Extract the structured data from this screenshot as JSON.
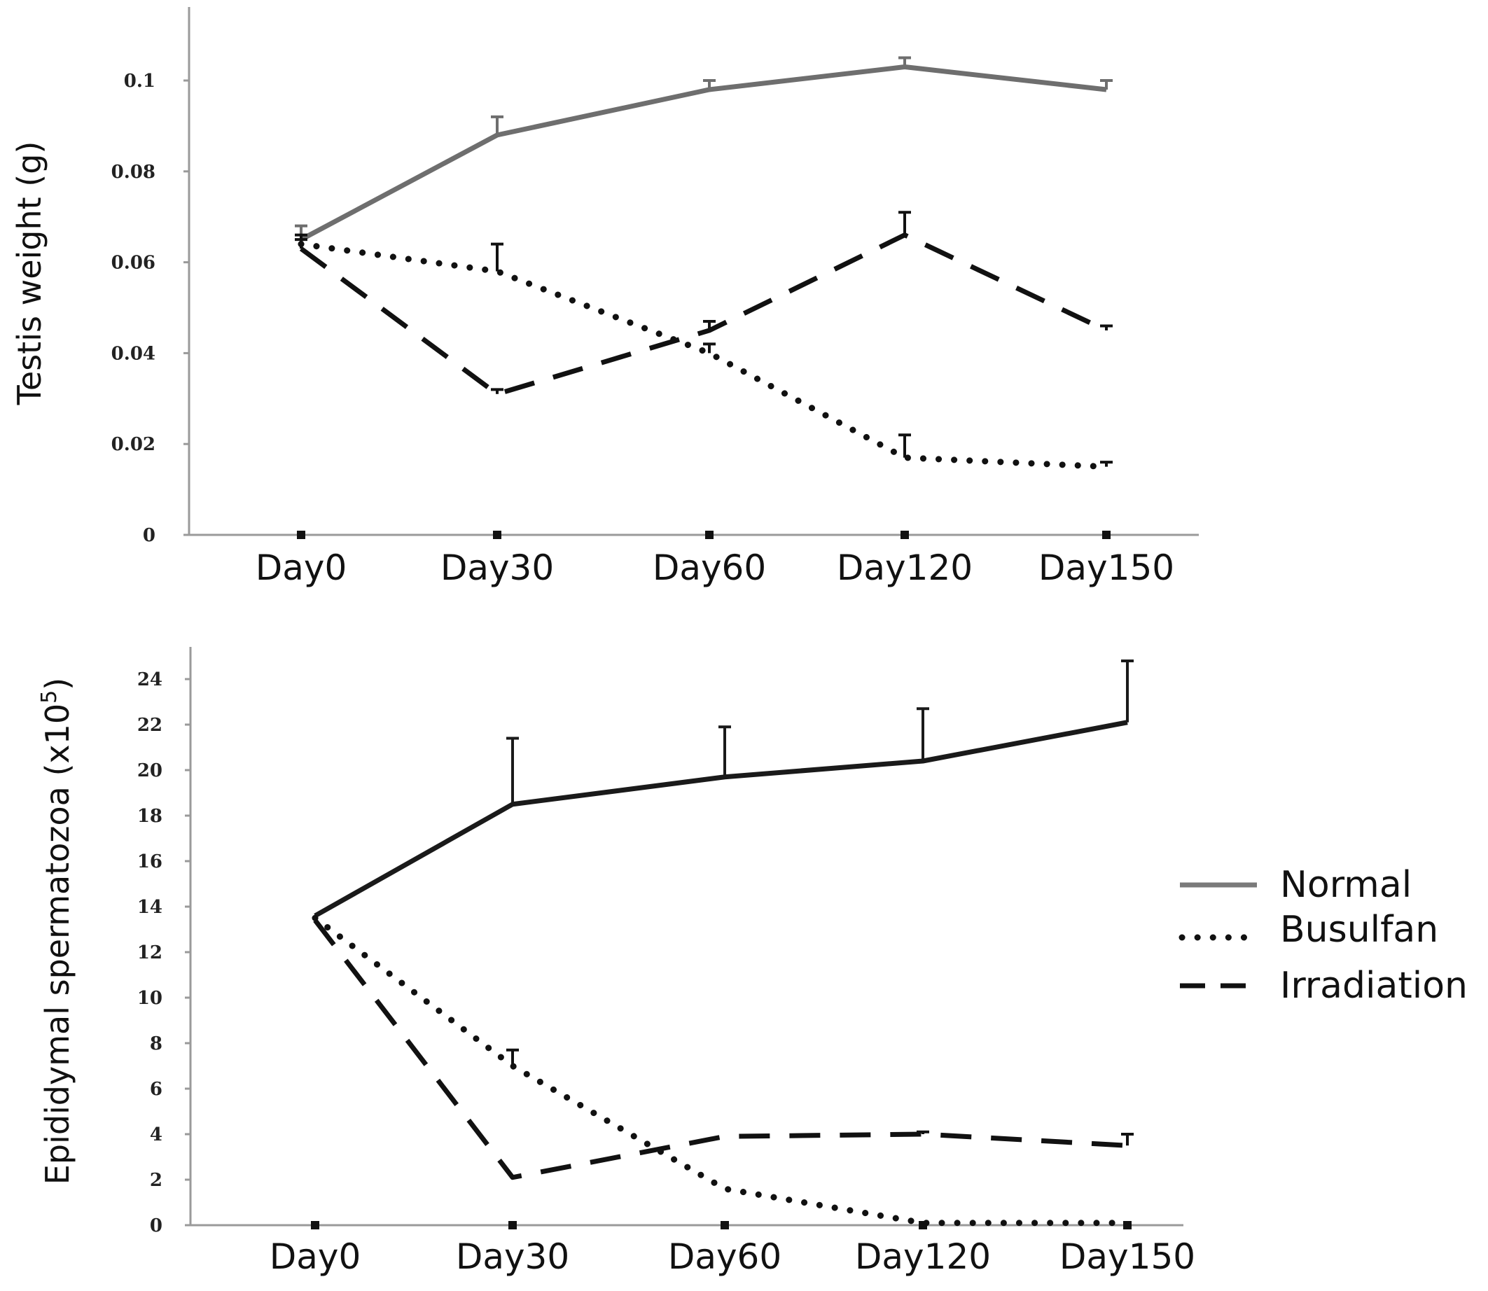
{
  "legend": {
    "entries": [
      "Normal",
      "Busulfan",
      "Irradiation"
    ]
  },
  "chart_data": [
    {
      "type": "line",
      "ylabel": "Testis weight (g)",
      "xlabel": "",
      "categories": [
        "Day0",
        "Day30",
        "Day60",
        "Day120",
        "Day150"
      ],
      "ylim": [
        0,
        0.1
      ],
      "yticks": [
        0,
        0.02,
        0.04,
        0.06,
        0.08,
        0.1
      ],
      "ytick_labels": [
        "0",
        "0.02",
        "0.04",
        "0.06",
        "0.08",
        "0.1"
      ],
      "grid": false,
      "series": [
        {
          "name": "Normal",
          "values": [
            0.065,
            0.088,
            0.098,
            0.103,
            0.098
          ],
          "err": [
            0.003,
            0.004,
            0.002,
            0.002,
            0.002
          ]
        },
        {
          "name": "Busulfan",
          "values": [
            0.064,
            0.058,
            0.04,
            0.017,
            0.015
          ],
          "err": [
            0.002,
            0.006,
            0.002,
            0.005,
            0.001
          ]
        },
        {
          "name": "Irradiation",
          "values": [
            0.063,
            0.031,
            0.045,
            0.066,
            0.045
          ],
          "err": [
            0.002,
            0.001,
            0.002,
            0.005,
            0.001
          ]
        }
      ]
    },
    {
      "type": "line",
      "ylabel": "Epididymal spermatozoa (x10",
      "ylabel_sup": "5",
      "ylabel_end": ")",
      "xlabel": "",
      "categories": [
        "Day0",
        "Day30",
        "Day60",
        "Day120",
        "Day150"
      ],
      "ylim": [
        0,
        24
      ],
      "yticks": [
        0,
        2,
        4,
        6,
        8,
        10,
        12,
        14,
        16,
        18,
        20,
        22,
        24
      ],
      "ytick_labels": [
        "0",
        "2",
        "4",
        "6",
        "8",
        "10",
        "12",
        "14",
        "16",
        "18",
        "20",
        "22",
        "24"
      ],
      "grid": false,
      "series": [
        {
          "name": "Normal",
          "values": [
            13.6,
            18.5,
            19.7,
            20.4,
            22.1
          ],
          "err": [
            0,
            2.9,
            2.2,
            2.3,
            2.7
          ]
        },
        {
          "name": "Busulfan",
          "values": [
            13.5,
            7.0,
            1.6,
            0.1,
            0.1
          ],
          "err": [
            0,
            0.7,
            0,
            0,
            0
          ]
        },
        {
          "name": "Irradiation",
          "values": [
            13.4,
            2.1,
            3.9,
            4.0,
            3.5
          ],
          "err": [
            0,
            0,
            0,
            0.1,
            0.5
          ]
        }
      ]
    }
  ],
  "colors": {
    "normal_top": "#6e6e6e",
    "normal_bottom": "#1a1a1a",
    "busulfan": "#111111",
    "irradiation": "#111111",
    "axis": "#9a9a9a",
    "legend_normal": "#7a7a7a"
  }
}
